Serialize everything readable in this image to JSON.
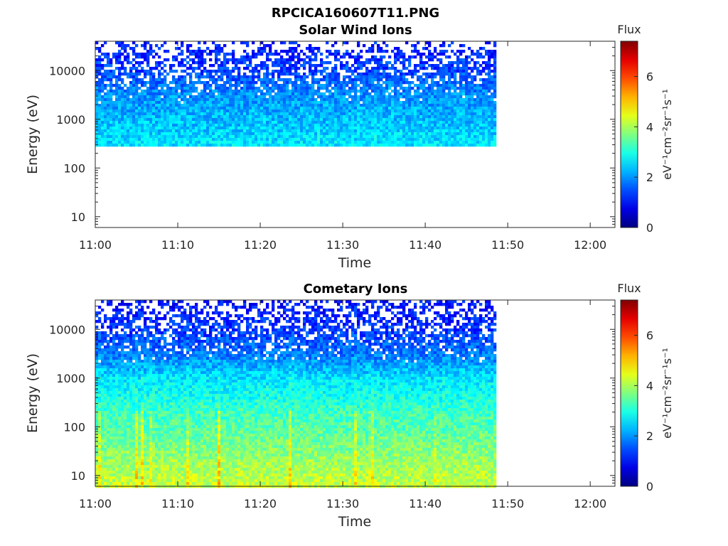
{
  "figure": {
    "title": "RPCICA160607T11.PNG"
  },
  "chart_data": [
    {
      "type": "heatmap",
      "title": "Solar Wind Ions",
      "xlabel": "Time",
      "ylabel": "Energy (eV)",
      "x_ticks": [
        "11:00",
        "11:10",
        "11:20",
        "11:30",
        "11:40",
        "11:50",
        "12:00"
      ],
      "x_range": [
        "11:00",
        "12:03"
      ],
      "data_x_range": [
        "11:00",
        "11:48.5"
      ],
      "y_scale": "log",
      "y_ticks": [
        "10",
        "100",
        "1000",
        "10000"
      ],
      "y_range": [
        6,
        40000
      ],
      "data_energy_range_eV": [
        290,
        40000
      ],
      "colorbar": {
        "label": "eV⁻¹cm⁻²sr⁻¹s⁻¹",
        "title": "Flux",
        "ticks": [
          "0",
          "2",
          "4",
          "6"
        ],
        "range": [
          0,
          7.4
        ]
      },
      "flux_profile": [
        {
          "energy": 300,
          "flux": 2.6
        },
        {
          "energy": 1000,
          "flux": 2.3
        },
        {
          "energy": 3000,
          "flux": 2.0
        },
        {
          "energy": 10000,
          "flux": 1.4
        },
        {
          "energy": 40000,
          "flux": 1.0
        }
      ]
    },
    {
      "type": "heatmap",
      "title": "Cometary Ions",
      "xlabel": "Time",
      "ylabel": "Energy (eV)",
      "x_ticks": [
        "11:00",
        "11:10",
        "11:20",
        "11:30",
        "11:40",
        "11:50",
        "12:00"
      ],
      "x_range": [
        "11:00",
        "12:03"
      ],
      "data_x_range": [
        "11:00",
        "11:48.5"
      ],
      "y_scale": "log",
      "y_ticks": [
        "10",
        "100",
        "1000",
        "10000"
      ],
      "y_range": [
        6,
        40000
      ],
      "data_energy_range_eV": [
        6,
        40000
      ],
      "colorbar": {
        "label": "eV⁻¹cm⁻²sr⁻¹s⁻¹",
        "title": "Flux",
        "ticks": [
          "0",
          "2",
          "4",
          "6"
        ],
        "range": [
          0,
          7.4
        ]
      },
      "flux_profile": [
        {
          "energy": 6,
          "flux": 4.2
        },
        {
          "energy": 15,
          "flux": 4.0
        },
        {
          "energy": 50,
          "flux": 3.6
        },
        {
          "energy": 200,
          "flux": 3.2
        },
        {
          "energy": 1000,
          "flux": 2.6
        },
        {
          "energy": 3000,
          "flux": 1.8
        },
        {
          "energy": 10000,
          "flux": 1.3
        },
        {
          "energy": 40000,
          "flux": 1.0
        }
      ]
    }
  ]
}
